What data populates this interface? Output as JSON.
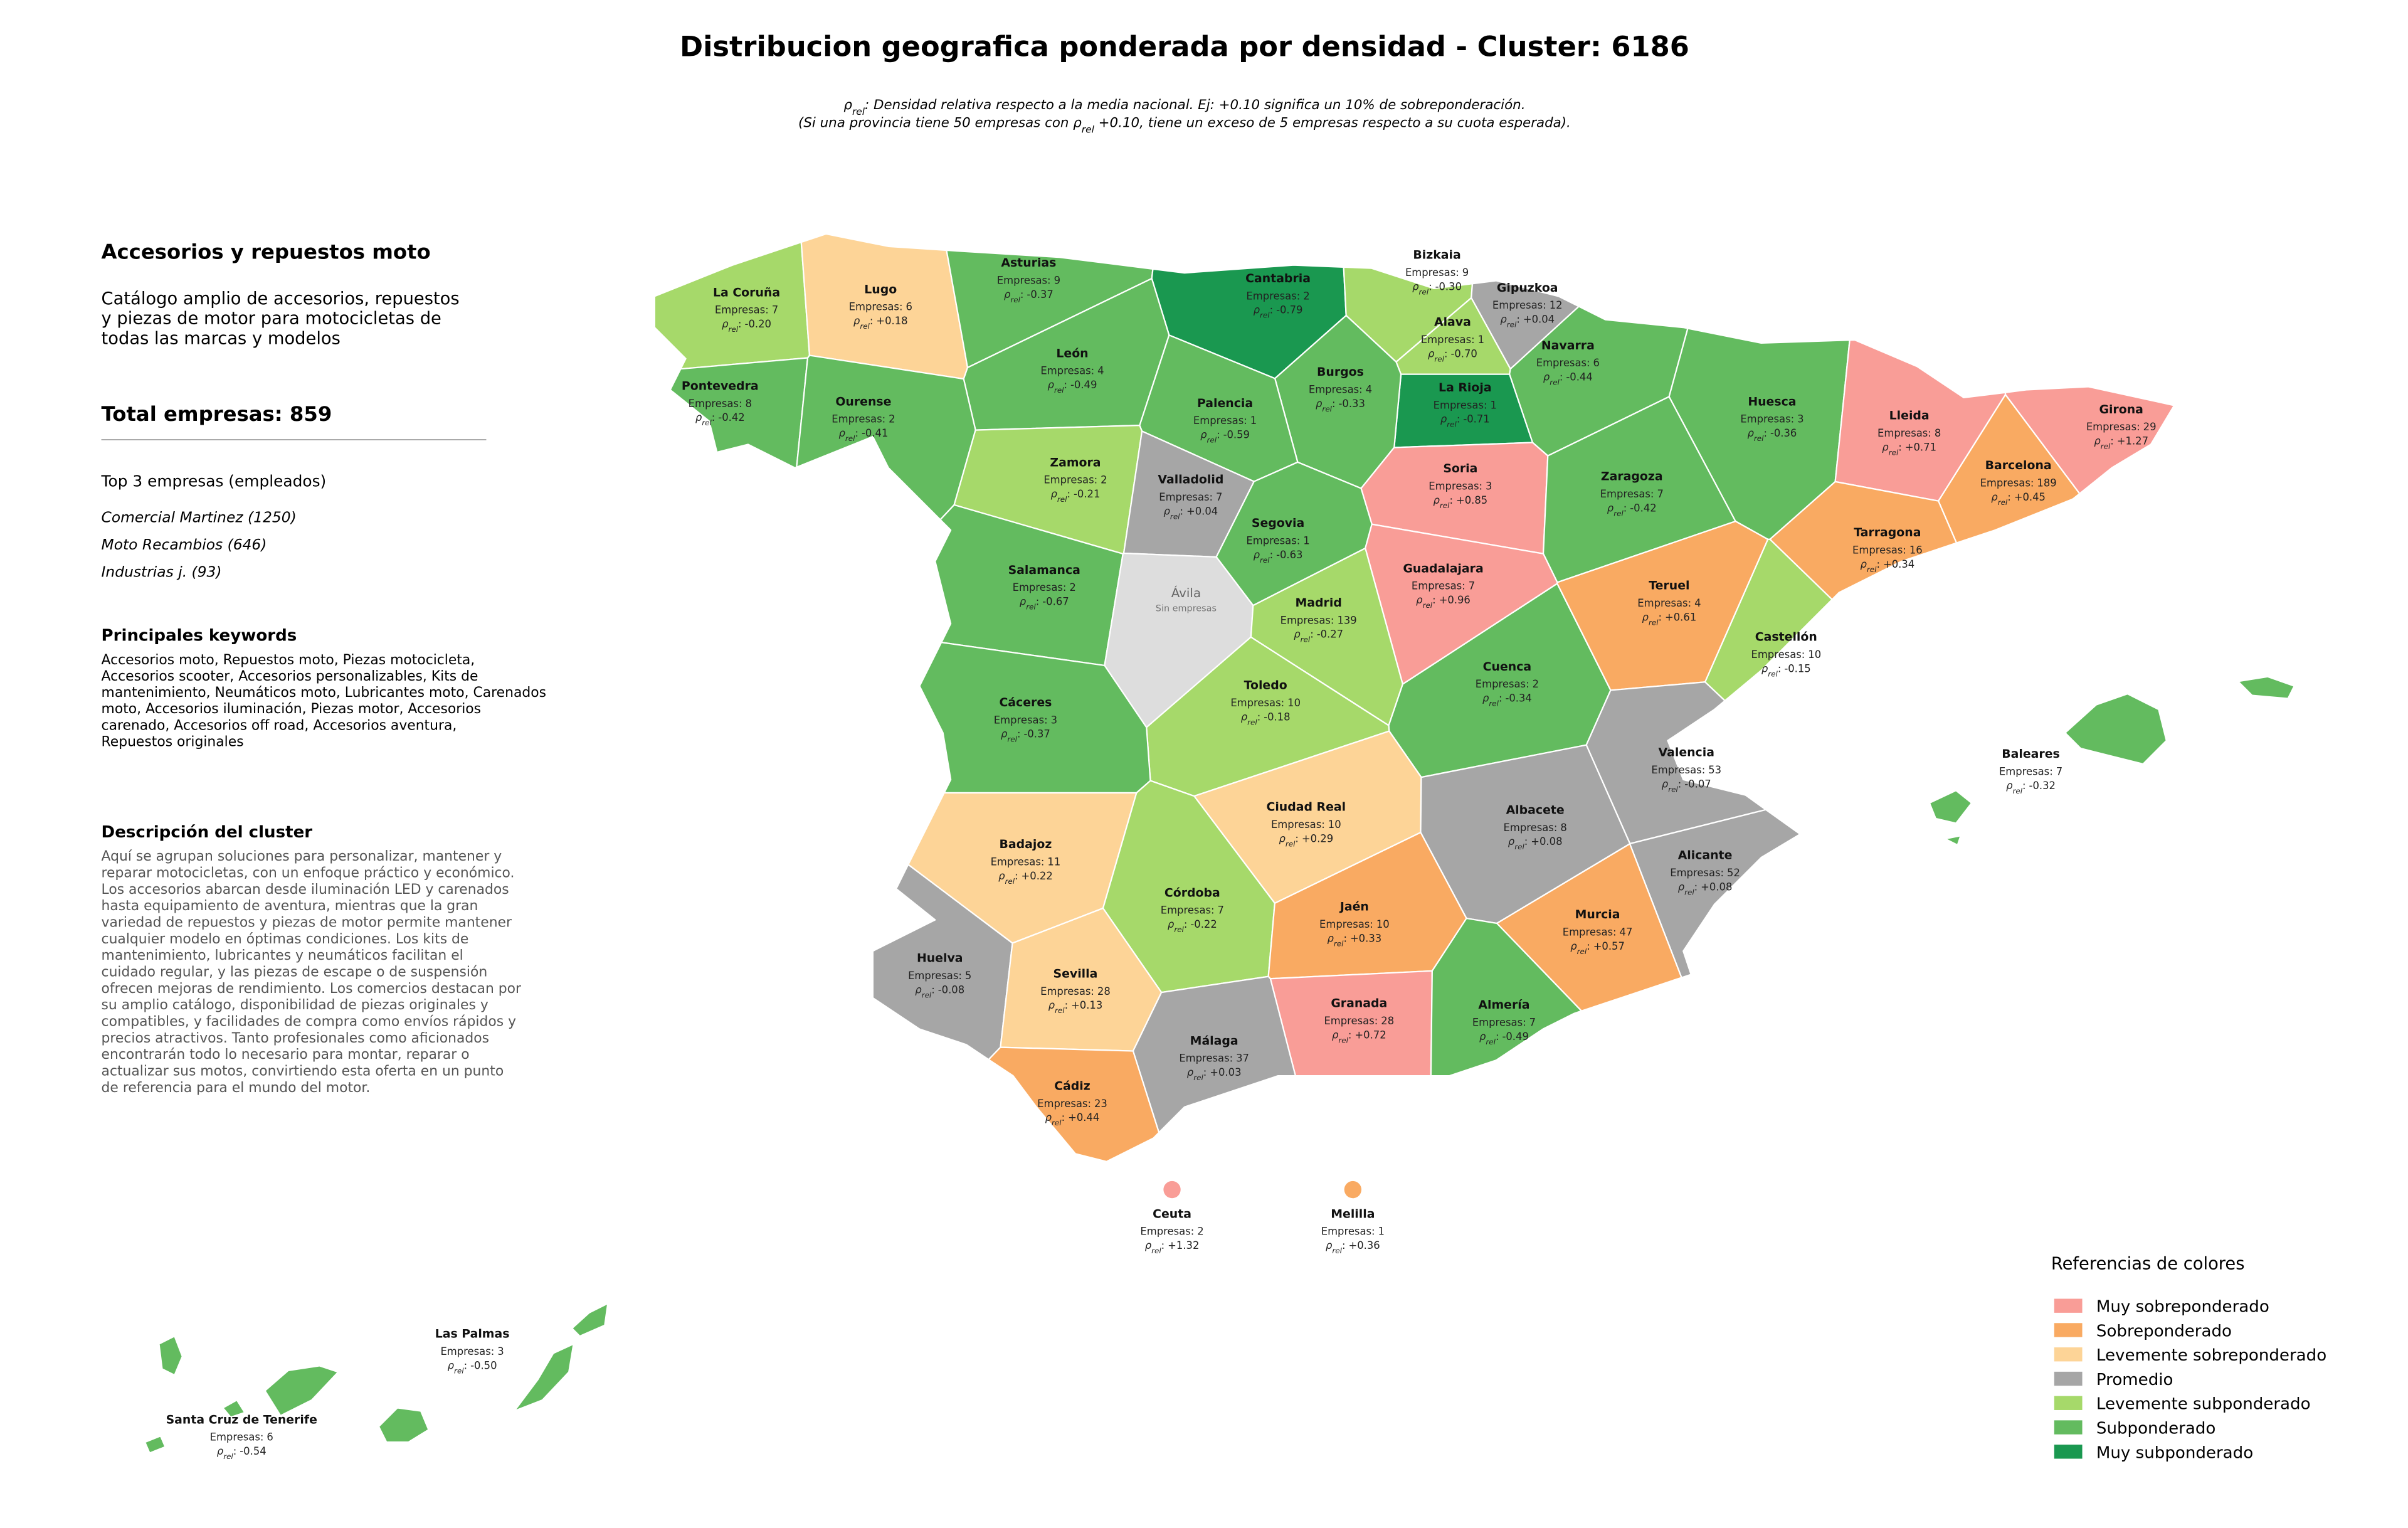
{
  "header": {
    "title": "Distribucion geografica ponderada por densidad - Cluster: 6186",
    "subtitle": [
      [
        "ρ",
        "rel",
        ": Densidad relativa respecto a la media nacional. Ej: +0.10 significa un 10% de sobreponderación."
      ],
      [
        "(Si una provincia tiene 50 empresas con ρ",
        "rel",
        " +0.10, tiene un exceso de 5 empresas respecto a su cuota esperada)."
      ]
    ]
  },
  "panel": {
    "heading": "Accesorios y repuestos moto",
    "description": [
      "Catálogo amplio de accesorios, repuestos",
      "y piezas de motor para motocicletas de",
      "todas las marcas y modelos"
    ],
    "total": "Total empresas: 859",
    "top_title": "Top 3 empresas (empleados)",
    "top": [
      "Comercial Martinez (1250)",
      "Moto Recambios (646)",
      "Industrias j. (93)"
    ],
    "keywords_title": "Principales keywords",
    "keywords": [
      "Accesorios moto, Repuestos moto, Piezas motocicleta,",
      "Accesorios scooter, Accesorios personalizables, Kits de",
      "mantenimiento, Neumáticos moto, Lubricantes moto, Carenados",
      "moto, Accesorios iluminación, Piezas motor, Accesorios",
      "carenado, Accesorios off road, Accesorios aventura,",
      "Repuestos originales"
    ],
    "cluster_title": "Descripción del cluster",
    "cluster_text": [
      "Aquí se agrupan soluciones para personalizar, mantener y",
      "reparar motocicletas, con un enfoque práctico y económico.",
      "Los accesorios abarcan desde iluminación LED y carenados",
      "hasta equipamiento de aventura, mientras que la gran",
      "variedad de repuestos y piezas de motor permite mantener",
      "cualquier modelo en óptimas condiciones. Los kits de",
      "mantenimiento, lubricantes y neumáticos facilitan el",
      "cuidado regular, y las piezas de escape o de suspensión",
      "ofrecen mejoras de rendimiento. Los comercios destacan por",
      "su amplio catálogo, disponibilidad de piezas originales y",
      "compatibles, y facilidades de compra como envíos rápidos y",
      "precios atractivos. Tanto profesionales como aficionados",
      "encontrarán todo lo necesario para montar, reparar o",
      "actualizar sus motos, convirtiendo esta oferta en un punto",
      "de referencia para el mundo del motor."
    ]
  },
  "map": {
    "labels": {
      "companies": "Empresas:",
      "rho": "ρ",
      "rel": "rel",
      "sep": ":"
    },
    "provinces": [
      {
        "name": "La Coruña",
        "companies": 7,
        "rho": "-0.20",
        "color": "#a6d96a"
      },
      {
        "name": "Lugo",
        "companies": 6,
        "rho": "+0.18",
        "color": "#fdd497"
      },
      {
        "name": "Asturias",
        "companies": 9,
        "rho": "-0.37",
        "color": "#63bb5f"
      },
      {
        "name": "Cantabria",
        "companies": 2,
        "rho": "-0.79",
        "color": "#1a9850"
      },
      {
        "name": "Bizkaia",
        "companies": 9,
        "rho": "-0.30",
        "color": "#a6d96a"
      },
      {
        "name": "Gipuzkoa",
        "companies": 12,
        "rho": "+0.04",
        "color": "#a6a6a6"
      },
      {
        "name": "Alava",
        "companies": 1,
        "rho": "-0.70",
        "color": "#a6d96a"
      },
      {
        "name": "Navarra",
        "companies": 6,
        "rho": "-0.44",
        "color": "#63bb5f"
      },
      {
        "name": "La Rioja",
        "companies": 1,
        "rho": "-0.71",
        "color": "#1a9850"
      },
      {
        "name": "Burgos",
        "companies": 4,
        "rho": "-0.33",
        "color": "#63bb5f"
      },
      {
        "name": "León",
        "companies": 4,
        "rho": "-0.49",
        "color": "#63bb5f"
      },
      {
        "name": "Palencia",
        "companies": 1,
        "rho": "-0.59",
        "color": "#63bb5f"
      },
      {
        "name": "Pontevedra",
        "companies": 8,
        "rho": "-0.42",
        "color": "#63bb5f"
      },
      {
        "name": "Ourense",
        "companies": 2,
        "rho": "-0.41",
        "color": "#63bb5f"
      },
      {
        "name": "Huesca",
        "companies": 3,
        "rho": "-0.36",
        "color": "#63bb5f"
      },
      {
        "name": "Lleida",
        "companies": 8,
        "rho": "+0.71",
        "color": "#f99d97"
      },
      {
        "name": "Girona",
        "companies": 29,
        "rho": "+1.27",
        "color": "#f99d97"
      },
      {
        "name": "Barcelona",
        "companies": 189,
        "rho": "+0.45",
        "color": "#f9aa62"
      },
      {
        "name": "Zamora",
        "companies": 2,
        "rho": "-0.21",
        "color": "#a6d96a"
      },
      {
        "name": "Valladolid",
        "companies": 7,
        "rho": "+0.04",
        "color": "#a6a6a6"
      },
      {
        "name": "Soria",
        "companies": 3,
        "rho": "+0.85",
        "color": "#f99d97"
      },
      {
        "name": "Zaragoza",
        "companies": 7,
        "rho": "-0.42",
        "color": "#63bb5f"
      },
      {
        "name": "Tarragona",
        "companies": 16,
        "rho": "+0.34",
        "color": "#f9aa62"
      },
      {
        "name": "Segovia",
        "companies": 1,
        "rho": "-0.63",
        "color": "#63bb5f"
      },
      {
        "name": "Salamanca",
        "companies": 2,
        "rho": "-0.67",
        "color": "#63bb5f"
      },
      {
        "name": "Ávila",
        "note": "Sin empresas",
        "color": "#dddddd"
      },
      {
        "name": "Guadalajara",
        "companies": 7,
        "rho": "+0.96",
        "color": "#f99d97"
      },
      {
        "name": "Teruel",
        "companies": 4,
        "rho": "+0.61",
        "color": "#f9aa62"
      },
      {
        "name": "Madrid",
        "companies": 139,
        "rho": "-0.27",
        "color": "#a6d96a"
      },
      {
        "name": "Castellón",
        "companies": 10,
        "rho": "-0.15",
        "color": "#a6d96a"
      },
      {
        "name": "Cuenca",
        "companies": 2,
        "rho": "-0.34",
        "color": "#63bb5f"
      },
      {
        "name": "Toledo",
        "companies": 10,
        "rho": "-0.18",
        "color": "#a6d96a"
      },
      {
        "name": "Cáceres",
        "companies": 3,
        "rho": "-0.37",
        "color": "#63bb5f"
      },
      {
        "name": "Valencia",
        "companies": 53,
        "rho": "-0.07",
        "color": "#a6a6a6"
      },
      {
        "name": "Baleares",
        "companies": 7,
        "rho": "-0.32",
        "color": "#63bb5f"
      },
      {
        "name": "Ciudad Real",
        "companies": 10,
        "rho": "+0.29",
        "color": "#fdd497"
      },
      {
        "name": "Albacete",
        "companies": 8,
        "rho": "+0.08",
        "color": "#a6a6a6"
      },
      {
        "name": "Badajoz",
        "companies": 11,
        "rho": "+0.22",
        "color": "#fdd497"
      },
      {
        "name": "Alicante",
        "companies": 52,
        "rho": "+0.08",
        "color": "#a6a6a6"
      },
      {
        "name": "Córdoba",
        "companies": 7,
        "rho": "-0.22",
        "color": "#a6d96a"
      },
      {
        "name": "Jaén",
        "companies": 10,
        "rho": "+0.33",
        "color": "#f9aa62"
      },
      {
        "name": "Murcia",
        "companies": 47,
        "rho": "+0.57",
        "color": "#f9aa62"
      },
      {
        "name": "Huelva",
        "companies": 5,
        "rho": "-0.08",
        "color": "#a6a6a6"
      },
      {
        "name": "Sevilla",
        "companies": 28,
        "rho": "+0.13",
        "color": "#fdd497"
      },
      {
        "name": "Granada",
        "companies": 28,
        "rho": "+0.72",
        "color": "#f99d97"
      },
      {
        "name": "Almería",
        "companies": 7,
        "rho": "-0.49",
        "color": "#63bb5f"
      },
      {
        "name": "Málaga",
        "companies": 37,
        "rho": "+0.03",
        "color": "#a6a6a6"
      },
      {
        "name": "Cádiz",
        "companies": 23,
        "rho": "+0.44",
        "color": "#f9aa62"
      },
      {
        "name": "Ceuta",
        "companies": 2,
        "rho": "+1.32",
        "color": "#f99d97"
      },
      {
        "name": "Melilla",
        "companies": 1,
        "rho": "+0.36",
        "color": "#f9aa62"
      },
      {
        "name": "Las Palmas",
        "companies": 3,
        "rho": "-0.50",
        "color": "#63bb5f"
      },
      {
        "name": "Santa Cruz de Tenerife",
        "companies": 6,
        "rho": "-0.54",
        "color": "#63bb5f"
      }
    ]
  },
  "legend": {
    "title": "Referencias de colores",
    "items": [
      {
        "name": "Muy sobreponderado",
        "color": "#f99d97"
      },
      {
        "name": "Sobreponderado",
        "color": "#f9aa62"
      },
      {
        "name": "Levemente sobreponderado",
        "color": "#fdd497"
      },
      {
        "name": "Promedio",
        "color": "#a6a6a6"
      },
      {
        "name": "Levemente subponderado",
        "color": "#a6d96a"
      },
      {
        "name": "Subponderado",
        "color": "#63bb5f"
      },
      {
        "name": "Muy subponderado",
        "color": "#1a9850"
      }
    ]
  }
}
